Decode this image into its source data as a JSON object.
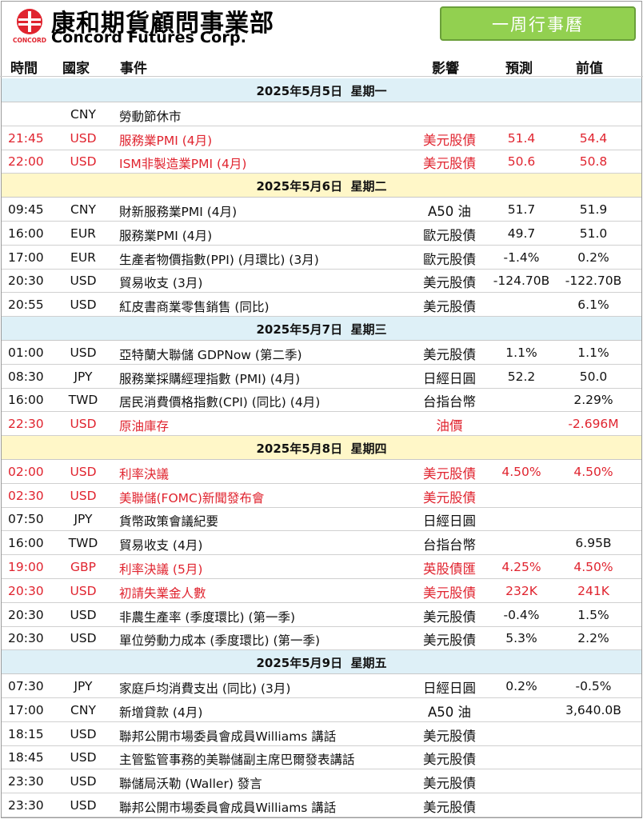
{
  "header": {
    "company_zh": "康和期貨顧問事業部",
    "company_en": "Concord Futures Corp.",
    "logo_small": "CONCORD",
    "button_label": "一周行事曆",
    "colors": {
      "red": "#e0242f",
      "button": "#92d050",
      "date_blue": "#def0f7",
      "date_yellow": "#fff7c8"
    }
  },
  "columns": {
    "time": "時間",
    "country": "國家",
    "event": "事件",
    "impact": "影響",
    "forecast": "預測",
    "previous": "前值"
  },
  "days": [
    {
      "date": "2025年5月5日",
      "weekday": "星期一",
      "rows": [
        {
          "time": "",
          "cur": "CNY",
          "event": "勞動節休市",
          "impact": "",
          "fc": "",
          "prev": "",
          "red": false
        },
        {
          "time": "21:45",
          "cur": "USD",
          "event": "服務業PMI (4月)",
          "impact": "美元股債",
          "fc": "51.4",
          "prev": "54.4",
          "red": true
        },
        {
          "time": "22:00",
          "cur": "USD",
          "event": "ISM非製造業PMI (4月)",
          "impact": "美元股債",
          "fc": "50.6",
          "prev": "50.8",
          "red": true
        }
      ]
    },
    {
      "date": "2025年5月6日",
      "weekday": "星期二",
      "rows": [
        {
          "time": "09:45",
          "cur": "CNY",
          "event": "財新服務業PMI (4月)",
          "impact": "A50 油",
          "fc": "51.7",
          "prev": "51.9",
          "red": false
        },
        {
          "time": "16:00",
          "cur": "EUR",
          "event": "服務業PMI (4月)",
          "impact": "歐元股債",
          "fc": "49.7",
          "prev": "51.0",
          "red": false
        },
        {
          "time": "17:00",
          "cur": "EUR",
          "event": "生產者物價指數(PPI) (月環比) (3月)",
          "impact": "歐元股債",
          "fc": "-1.4%",
          "prev": "0.2%",
          "red": false
        },
        {
          "time": "20:30",
          "cur": "USD",
          "event": "貿易收支 (3月)",
          "impact": "美元股債",
          "fc": "-124.70B",
          "prev": "-122.70B",
          "red": false
        },
        {
          "time": "20:55",
          "cur": "USD",
          "event": "紅皮書商業零售銷售 (同比)",
          "impact": "美元股債",
          "fc": "",
          "prev": "6.1%",
          "red": false
        }
      ]
    },
    {
      "date": "2025年5月7日",
      "weekday": "星期三",
      "rows": [
        {
          "time": "01:00",
          "cur": "USD",
          "event": "亞特蘭大聯儲 GDPNow (第二季)",
          "impact": "美元股債",
          "fc": "1.1%",
          "prev": "1.1%",
          "red": false
        },
        {
          "time": "08:30",
          "cur": "JPY",
          "event": "服務業採購經理指數 (PMI) (4月)",
          "impact": "日經日圓",
          "fc": "52.2",
          "prev": "50.0",
          "red": false
        },
        {
          "time": "16:00",
          "cur": "TWD",
          "event": "居民消費價格指數(CPI) (同比) (4月)",
          "impact": "台指台幣",
          "fc": "",
          "prev": "2.29%",
          "red": false
        },
        {
          "time": "22:30",
          "cur": "USD",
          "event": "原油庫存",
          "impact": "油價",
          "fc": "",
          "prev": "-2.696M",
          "red": true
        }
      ]
    },
    {
      "date": "2025年5月8日",
      "weekday": "星期四",
      "rows": [
        {
          "time": "02:00",
          "cur": "USD",
          "event": "利率決議",
          "impact": "美元股債",
          "fc": "4.50%",
          "prev": "4.50%",
          "red": true
        },
        {
          "time": "02:30",
          "cur": "USD",
          "event": "美聯儲(FOMC)新聞發布會",
          "impact": "美元股債",
          "fc": "",
          "prev": "",
          "red": true
        },
        {
          "time": "07:50",
          "cur": "JPY",
          "event": "貨幣政策會議紀要",
          "impact": "日經日圓",
          "fc": "",
          "prev": "",
          "red": false
        },
        {
          "time": "16:00",
          "cur": "TWD",
          "event": "貿易收支 (4月)",
          "impact": "台指台幣",
          "fc": "",
          "prev": "6.95B",
          "red": false
        },
        {
          "time": "19:00",
          "cur": "GBP",
          "event": "利率決議 (5月)",
          "impact": "英股債匯",
          "fc": "4.25%",
          "prev": "4.50%",
          "red": true
        },
        {
          "time": "20:30",
          "cur": "USD",
          "event": "初請失業金人數",
          "impact": "美元股債",
          "fc": "232K",
          "prev": "241K",
          "red": true
        },
        {
          "time": "20:30",
          "cur": "USD",
          "event": "非農生產率 (季度環比) (第一季)",
          "impact": "美元股債",
          "fc": "-0.4%",
          "prev": "1.5%",
          "red": false
        },
        {
          "time": "20:30",
          "cur": "USD",
          "event": "單位勞動力成本 (季度環比) (第一季)",
          "impact": "美元股債",
          "fc": "5.3%",
          "prev": "2.2%",
          "red": false
        }
      ]
    },
    {
      "date": "2025年5月9日",
      "weekday": "星期五",
      "rows": [
        {
          "time": "07:30",
          "cur": "JPY",
          "event": "家庭戶均消費支出 (同比) (3月)",
          "impact": "日經日圓",
          "fc": "0.2%",
          "prev": "-0.5%",
          "red": false
        },
        {
          "time": "17:00",
          "cur": "CNY",
          "event": "新增貸款 (4月)",
          "impact": "A50 油",
          "fc": "",
          "prev": "3,640.0B",
          "red": false
        },
        {
          "time": "18:15",
          "cur": "USD",
          "event": "聯邦公開市場委員會成員Williams 講話",
          "impact": "美元股債",
          "fc": "",
          "prev": "",
          "red": false
        },
        {
          "time": "18:45",
          "cur": "USD",
          "event": "主管監管事務的美聯儲副主席巴爾發表講話",
          "impact": "美元股債",
          "fc": "",
          "prev": "",
          "red": false
        },
        {
          "time": "23:30",
          "cur": "USD",
          "event": "聯儲局沃勒 (Waller) 發言",
          "impact": "美元股債",
          "fc": "",
          "prev": "",
          "red": false
        },
        {
          "time": "23:30",
          "cur": "USD",
          "event": "聯邦公開市場委員會成員Williams 講話",
          "impact": "美元股債",
          "fc": "",
          "prev": "",
          "red": false
        }
      ]
    }
  ]
}
